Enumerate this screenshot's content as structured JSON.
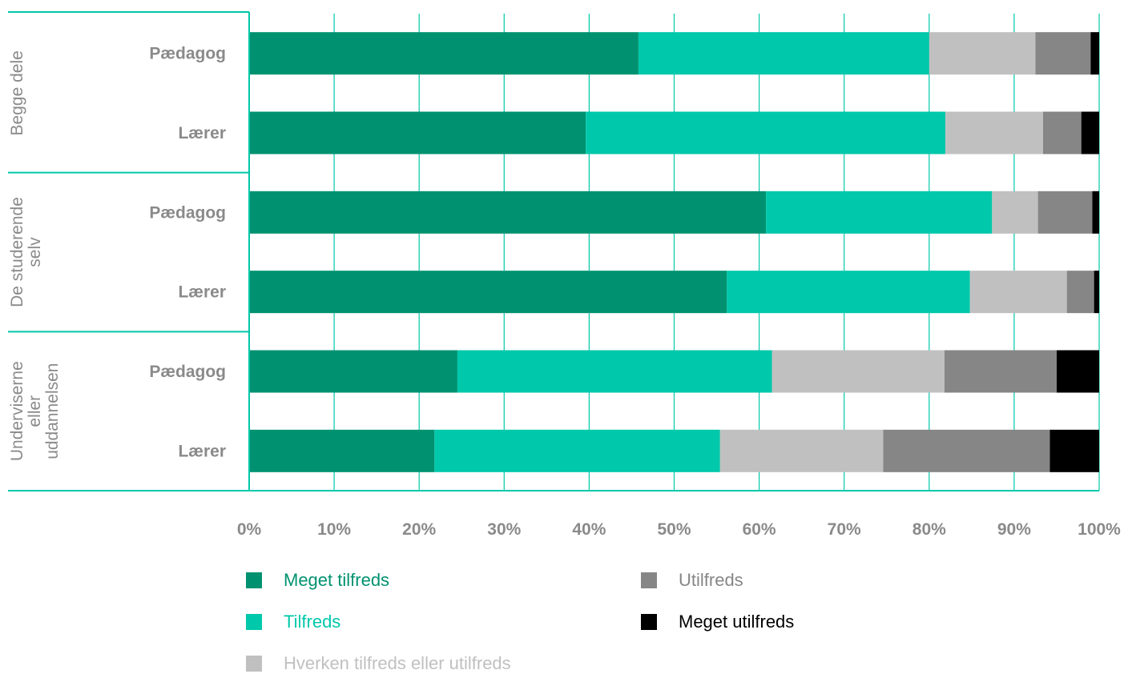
{
  "chart_data": {
    "type": "bar",
    "orientation": "horizontal",
    "stacked": true,
    "xlim": [
      0,
      100
    ],
    "ticks": [
      "0%",
      "10%",
      "20%",
      "30%",
      "40%",
      "50%",
      "60%",
      "70%",
      "80%",
      "90%",
      "100%"
    ],
    "grid": true,
    "groups": [
      {
        "label_lines": [
          "Begge dele"
        ],
        "categories": [
          "Pædagog",
          "Lærer"
        ]
      },
      {
        "label_lines": [
          "De studerende",
          "selv"
        ],
        "categories": [
          "Pædagog",
          "Lærer"
        ]
      },
      {
        "label_lines": [
          "Underviserne",
          "eller",
          "uddannelsen"
        ],
        "categories": [
          "Pædagog",
          "Lærer"
        ]
      }
    ],
    "series": [
      {
        "name": "Meget tilfreds",
        "color": "#009270",
        "text_color": "#009270",
        "values": [
          45.8,
          39.6,
          60.8,
          56.2,
          24.5,
          21.8
        ]
      },
      {
        "name": "Tilfreds",
        "color": "#00C8AA",
        "text_color": "#00C8AA",
        "values": [
          34.2,
          42.3,
          26.6,
          28.6,
          37.0,
          33.6
        ]
      },
      {
        "name": "Hverken tilfreds eller utilfreds",
        "color": "#C0C0C0",
        "text_color": "#C0C0C0",
        "values": [
          12.5,
          11.5,
          5.4,
          11.4,
          20.3,
          19.2
        ]
      },
      {
        "name": "Utilfreds",
        "color": "#868686",
        "text_color": "#868686",
        "values": [
          6.5,
          4.5,
          6.4,
          3.2,
          13.2,
          19.6
        ]
      },
      {
        "name": "Meget utilfreds",
        "color": "#000000",
        "text_color": "#000000",
        "values": [
          1.0,
          2.1,
          0.8,
          0.6,
          5.0,
          5.8
        ]
      }
    ],
    "legend_placement": "bottom",
    "accent_color": "#00C8AA",
    "grid_color": "#00C8AA"
  }
}
